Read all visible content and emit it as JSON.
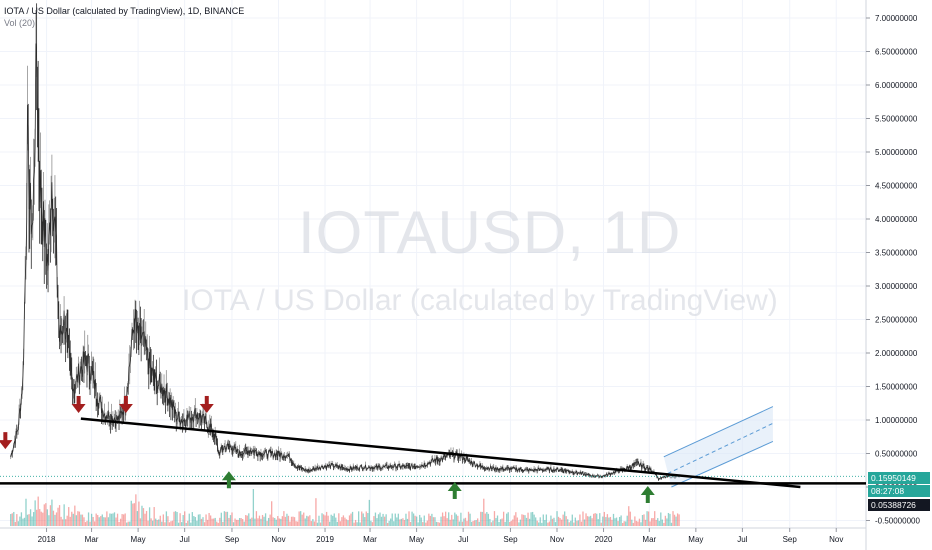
{
  "header": {
    "title": "IOTA / US Dollar (calculated by TradingView), 1D, BINANCE",
    "volume_study": "Vol (20)"
  },
  "watermark": {
    "symbol": "IOTAUSD, 1D",
    "name": "IOTA / US Dollar (calculated by TradingView)"
  },
  "price_tags": {
    "last_price": "0.15950149",
    "countdown": "08:27:08",
    "level": "0.05388726"
  },
  "colors": {
    "up": "#26a69a",
    "down": "#ef5350",
    "trendline": "#000000",
    "channel": "#5b9bd5",
    "channel_fill": "#dbe8f7",
    "sell_arrow": "#a31e1e",
    "buy_arrow": "#2e7d32",
    "last_price_tag": "#26a69a",
    "level_tag": "#131722"
  },
  "chart_data": {
    "type": "line",
    "title": "IOTA / US Dollar (calculated by TradingView), 1D, BINANCE",
    "xlabel": "",
    "ylabel": "",
    "x_ticks": [
      "2018",
      "Mar",
      "May",
      "Jul",
      "Sep",
      "Nov",
      "2019",
      "Mar",
      "May",
      "Jul",
      "Sep",
      "Nov",
      "2020",
      "Mar",
      "May",
      "Jul",
      "Sep",
      "Nov"
    ],
    "y_ticks": [
      "7.00000000",
      "6.50000000",
      "6.00000000",
      "5.50000000",
      "5.00000000",
      "4.50000000",
      "4.00000000",
      "3.50000000",
      "3.00000000",
      "2.50000000",
      "2.00000000",
      "1.50000000",
      "1.00000000",
      "0.50000000",
      "0.00000000",
      "-0.50000000"
    ],
    "ylim": [
      -0.5,
      7.2
    ],
    "grid": true,
    "series": [
      {
        "name": "IOTAUSD",
        "points": [
          [
            "2017-11-15",
            0.45
          ],
          [
            "2017-11-25",
            0.9
          ],
          [
            "2017-12-01",
            1.6
          ],
          [
            "2017-12-05",
            3.6
          ],
          [
            "2017-12-07",
            5.2
          ],
          [
            "2017-12-10",
            4.2
          ],
          [
            "2017-12-14",
            3.9
          ],
          [
            "2017-12-19",
            6.5
          ],
          [
            "2017-12-23",
            4.6
          ],
          [
            "2017-12-28",
            3.9
          ],
          [
            "2018-01-03",
            3.3
          ],
          [
            "2018-01-08",
            4.6
          ],
          [
            "2018-01-13",
            3.7
          ],
          [
            "2018-01-18",
            2.2
          ],
          [
            "2018-01-24",
            2.5
          ],
          [
            "2018-01-31",
            1.9
          ],
          [
            "2018-02-06",
            1.45
          ],
          [
            "2018-02-14",
            1.75
          ],
          [
            "2018-02-22",
            1.9
          ],
          [
            "2018-03-02",
            1.7
          ],
          [
            "2018-03-10",
            1.3
          ],
          [
            "2018-03-18",
            1.1
          ],
          [
            "2018-03-28",
            1.05
          ],
          [
            "2018-04-06",
            1.0
          ],
          [
            "2018-04-14",
            1.25
          ],
          [
            "2018-04-22",
            2.05
          ],
          [
            "2018-04-26",
            2.5
          ],
          [
            "2018-05-01",
            2.2
          ],
          [
            "2018-05-06",
            2.25
          ],
          [
            "2018-05-14",
            1.9
          ],
          [
            "2018-05-22",
            1.6
          ],
          [
            "2018-05-31",
            1.5
          ],
          [
            "2018-06-10",
            1.35
          ],
          [
            "2018-06-20",
            1.05
          ],
          [
            "2018-06-30",
            1.0
          ],
          [
            "2018-07-08",
            1.05
          ],
          [
            "2018-07-16",
            1.1
          ],
          [
            "2018-07-25",
            1.0
          ],
          [
            "2018-08-03",
            0.9
          ],
          [
            "2018-08-10",
            0.75
          ],
          [
            "2018-08-15",
            0.5
          ],
          [
            "2018-08-22",
            0.6
          ],
          [
            "2018-08-31",
            0.6
          ],
          [
            "2018-09-10",
            0.5
          ],
          [
            "2018-09-25",
            0.55
          ],
          [
            "2018-10-10",
            0.5
          ],
          [
            "2018-10-31",
            0.49
          ],
          [
            "2018-11-14",
            0.47
          ],
          [
            "2018-11-25",
            0.3
          ],
          [
            "2018-12-10",
            0.24
          ],
          [
            "2018-12-25",
            0.3
          ],
          [
            "2019-01-10",
            0.32
          ],
          [
            "2019-02-01",
            0.27
          ],
          [
            "2019-02-20",
            0.3
          ],
          [
            "2019-03-10",
            0.29
          ],
          [
            "2019-04-01",
            0.31
          ],
          [
            "2019-04-20",
            0.3
          ],
          [
            "2019-05-10",
            0.33
          ],
          [
            "2019-05-25",
            0.4
          ],
          [
            "2019-06-03",
            0.42
          ],
          [
            "2019-06-14",
            0.48
          ],
          [
            "2019-06-26",
            0.47
          ],
          [
            "2019-07-10",
            0.38
          ],
          [
            "2019-07-25",
            0.3
          ],
          [
            "2019-08-15",
            0.27
          ],
          [
            "2019-09-05",
            0.27
          ],
          [
            "2019-09-25",
            0.25
          ],
          [
            "2019-10-15",
            0.26
          ],
          [
            "2019-11-05",
            0.26
          ],
          [
            "2019-11-25",
            0.22
          ],
          [
            "2019-12-15",
            0.17
          ],
          [
            "2019-12-31",
            0.16
          ],
          [
            "2020-01-15",
            0.22
          ],
          [
            "2020-02-01",
            0.28
          ],
          [
            "2020-02-15",
            0.35
          ],
          [
            "2020-02-25",
            0.29
          ],
          [
            "2020-03-08",
            0.23
          ],
          [
            "2020-03-13",
            0.12
          ],
          [
            "2020-03-22",
            0.15
          ],
          [
            "2020-03-31",
            0.155
          ],
          [
            "2020-04-10",
            0.16
          ]
        ]
      }
    ],
    "annotations": {
      "descending_trendline": [
        [
          "2018-02-15",
          1.02
        ],
        [
          "2020-09-15",
          0.0
        ]
      ],
      "support_level": 0.05388726,
      "rising_channel": {
        "upper": [
          [
            "2020-03-20",
            0.45
          ],
          [
            "2020-08-10",
            1.2
          ]
        ],
        "middle": [
          [
            "2020-03-25",
            0.2
          ],
          [
            "2020-08-10",
            0.95
          ]
        ],
        "lower": [
          [
            "2020-03-30",
            0.0
          ],
          [
            "2020-08-10",
            0.68
          ]
        ]
      },
      "sell_arrows": [
        [
          "2017-11-08",
          0.58
        ],
        [
          "2018-02-12",
          1.12
        ],
        [
          "2018-04-15",
          1.12
        ],
        [
          "2018-07-30",
          1.12
        ]
      ],
      "buy_arrows": [
        [
          "2018-08-28",
          0.22
        ],
        [
          "2019-06-20",
          0.06
        ],
        [
          "2020-02-28",
          0.0
        ]
      ]
    }
  }
}
